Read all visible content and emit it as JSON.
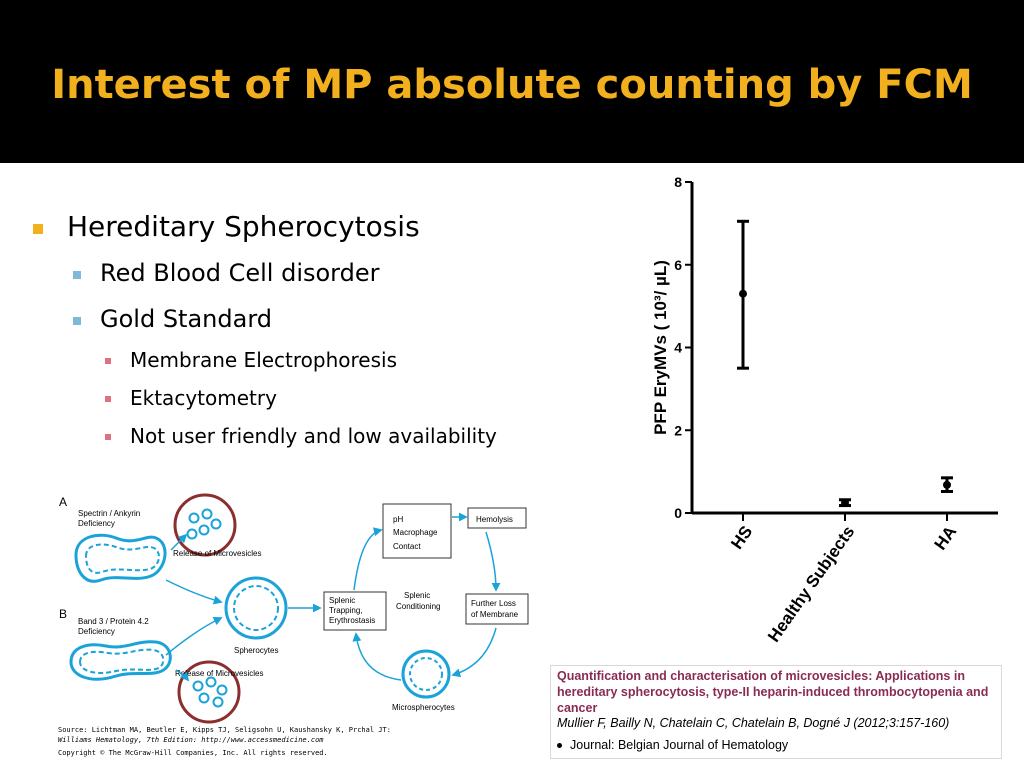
{
  "title": "Interest of MP absolute counting by FCM",
  "bullets": {
    "l1": "Hereditary Spherocytosis",
    "l2": [
      "Red Blood Cell disorder",
      "Gold Standard"
    ],
    "l3": [
      "Membrane Electrophoresis",
      "Ektacytometry",
      "Not user friendly and low availability"
    ]
  },
  "colors": {
    "title": "#F2B01E",
    "marker1": "#F2B01E",
    "marker2": "#7FB9D9",
    "marker3": "#E07080",
    "cell": "#1AA3D9",
    "circle": "#8B2E2E"
  },
  "chart_data": {
    "type": "scatter",
    "ylabel": "PFP EryMVs ( 10³/ µL)",
    "ylim": [
      0,
      8
    ],
    "yticks": [
      "0",
      "2",
      "4",
      "6",
      "8"
    ],
    "categories": [
      "HS",
      "Healthy Subjects",
      "HA"
    ],
    "points": [
      {
        "category": "HS",
        "mean": 5.3,
        "low": 3.5,
        "high": 7.05
      },
      {
        "category": "Healthy Subjects",
        "mean": 0.25,
        "low": 0.18,
        "high": 0.32
      },
      {
        "category": "HA",
        "mean": 0.68,
        "low": 0.52,
        "high": 0.85
      }
    ]
  },
  "diagram": {
    "label_a": "A",
    "label_b": "B",
    "spectrin_l1": "Spectrin / Ankyrin",
    "spectrin_l2": "Deficiency",
    "band3_l1": "Band 3 / Protein 4.2",
    "band3_l2": "Deficiency",
    "release1": "Release of Microvesicles",
    "release2": "Release of Microvesicles",
    "spherocytes": "Spherocytes",
    "microspherocytes": "Microspherocytes",
    "ph": "pH",
    "macrophage": "Macrophage",
    "contact": "Contact",
    "hemolysis": "Hemolysis",
    "splenic_l1": "Splenic",
    "splenic_l2": "Conditioning",
    "trap_l1": "Splenic",
    "trap_l2": "Trapping,",
    "trap_l3": "Erythrostasis",
    "loss_l1": "Further Loss",
    "loss_l2": "of Membrane"
  },
  "source": {
    "line1": "Source: Lichtman MA, Beutler E, Kipps TJ, Seligsohn U, Kaushansky K, Prchal JT:",
    "line2": "Williams Hematology, 7th Edition: http://www.accessmedicine.com",
    "line3": "Copyright © The McGraw-Hill Companies, Inc. All rights reserved."
  },
  "reference": {
    "title": "Quantification and characterisation of microvesicles: Applications in hereditary spherocytosis, type-II heparin-induced thrombocytopenia and cancer",
    "authors": "Mullier F, Bailly N, Chatelain C, Chatelain B, Dogné J (2012;3:157-160)",
    "journal": "Journal: Belgian Journal of Hematology"
  }
}
